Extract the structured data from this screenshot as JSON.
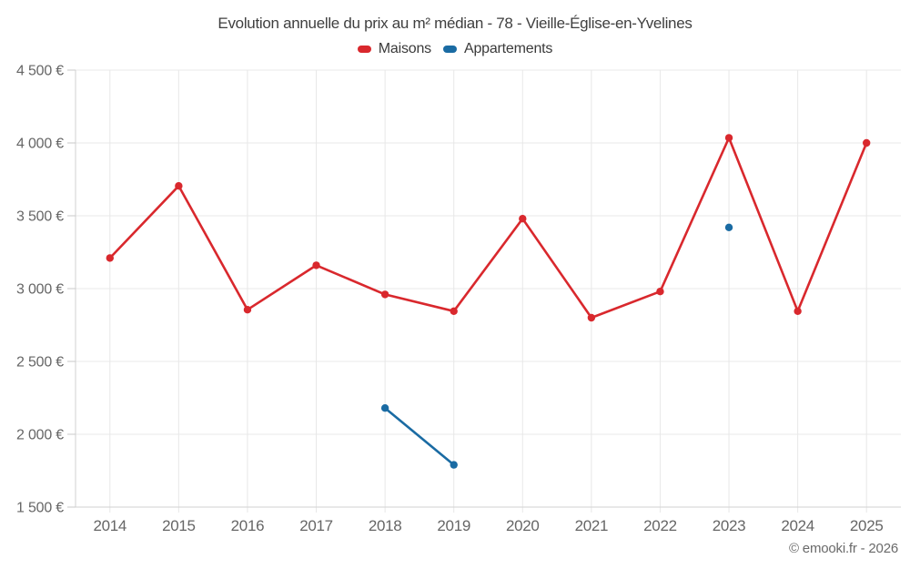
{
  "title": "Evolution annuelle du prix au m² médian - 78 - Vieille-Église-en-Yvelines",
  "legend": {
    "items": [
      {
        "label": "Maisons",
        "color": "#d9282d",
        "swatch_icon": "legend-swatch-red"
      },
      {
        "label": "Appartements",
        "color": "#1a6ba3",
        "swatch_icon": "legend-swatch-blue"
      }
    ]
  },
  "footer": {
    "copyright": "© emooki.fr - 2026"
  },
  "chart_data": {
    "type": "line",
    "title": "Evolution annuelle du prix au m² médian - 78 - Vieille-Église-en-Yvelines",
    "x": [
      "2014",
      "2015",
      "2016",
      "2017",
      "2018",
      "2019",
      "2020",
      "2021",
      "2022",
      "2023",
      "2024",
      "2025"
    ],
    "series": [
      {
        "name": "Maisons",
        "color": "#d9282d",
        "values": [
          3210,
          3705,
          2855,
          3160,
          2960,
          2845,
          3480,
          2800,
          2980,
          4035,
          2845,
          4000
        ]
      },
      {
        "name": "Appartements",
        "color": "#1a6ba3",
        "values": [
          null,
          null,
          null,
          null,
          2180,
          1790,
          null,
          null,
          null,
          3420,
          null,
          null
        ]
      }
    ],
    "xlabel": "",
    "ylabel": "",
    "ylim": [
      1500,
      4500
    ],
    "y_tick_step": 500,
    "y_tick_labels": [
      "1 500 €",
      "2 000 €",
      "2 500 €",
      "3 000 €",
      "3 500 €",
      "4 000 €",
      "4 500 €"
    ],
    "grid": true,
    "legend_position": "top",
    "colors": {
      "grid_line": "#e8e8e8",
      "axis_line": "#d2d2d2",
      "tick_mark": "#c9c9c9",
      "tick_label": "#666666"
    }
  }
}
